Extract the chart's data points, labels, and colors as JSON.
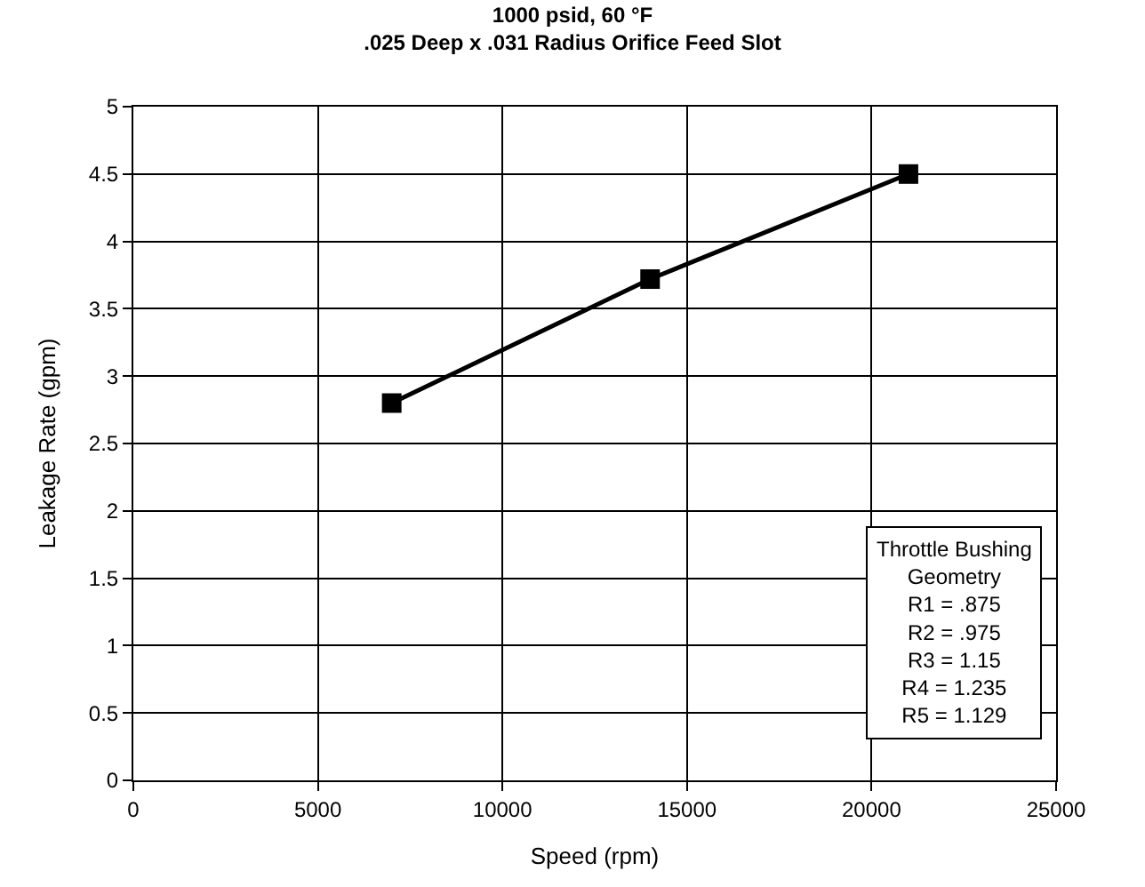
{
  "chart_data": {
    "type": "line",
    "title": "1000 psid, 60 °F\n.025 Deep x .031 Radius Orifice Feed Slot",
    "xlabel": "Speed (rpm)",
    "ylabel": "Leakage Rate (gpm)",
    "x": [
      7000,
      14000,
      21000
    ],
    "series": [
      {
        "color": "#000000",
        "values": [
          2.8,
          3.72,
          4.5
        ]
      }
    ],
    "xlim": [
      0,
      25000
    ],
    "xticks": [
      0,
      5000,
      10000,
      15000,
      20000,
      25000
    ],
    "ylim": [
      0,
      5
    ],
    "yticks": [
      0,
      0.5,
      1,
      1.5,
      2,
      2.5,
      3,
      3.5,
      4,
      4.5,
      5
    ],
    "grid": true,
    "marker": "square",
    "line_style": "solid",
    "annotations": [
      "Throttle Bushing\nGeometry\nR1 = .875\nR2 = .975\nR3 = 1.15\nR4 = 1.235\nR5 = 1.129"
    ]
  }
}
